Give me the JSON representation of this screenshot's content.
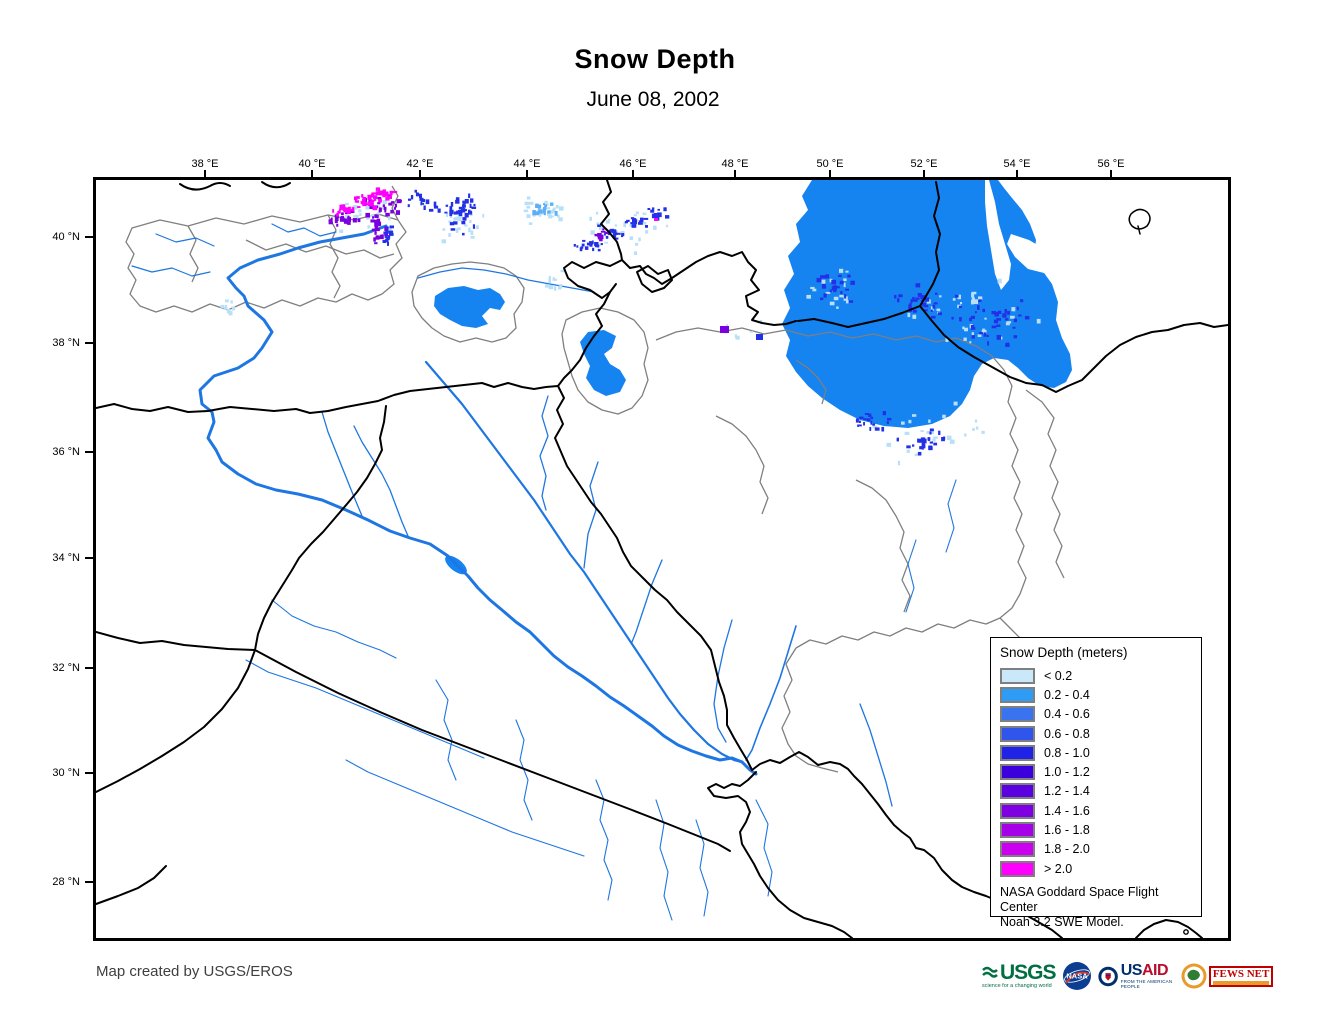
{
  "header": {
    "title": "Snow Depth",
    "subtitle": "June 08, 2002"
  },
  "axes": {
    "top_ticks": [
      "38 °E",
      "40 °E",
      "42 °E",
      "44 °E",
      "46 °E",
      "48 °E",
      "50 °E",
      "52 °E",
      "54 °E",
      "56 °E"
    ],
    "left_ticks": [
      "40 °N",
      "38 °N",
      "36 °N",
      "34 °N",
      "32 °N",
      "30 °N",
      "28 °N"
    ]
  },
  "legend": {
    "title": "Snow Depth (meters)",
    "items": [
      {
        "label": "< 0.2",
        "color": "#C9E8F9"
      },
      {
        "label": "0.2 - 0.4",
        "color": "#2E9BF5"
      },
      {
        "label": "0.4 - 0.6",
        "color": "#3973EF"
      },
      {
        "label": "0.6 - 0.8",
        "color": "#2F55EC"
      },
      {
        "label": "0.8 - 1.0",
        "color": "#2023E6"
      },
      {
        "label": "1.0 - 1.2",
        "color": "#3C00DC"
      },
      {
        "label": "1.2 - 1.4",
        "color": "#5B00DF"
      },
      {
        "label": "1.4 - 1.6",
        "color": "#7E00E2"
      },
      {
        "label": "1.6 - 1.8",
        "color": "#A500E8"
      },
      {
        "label": "1.8 - 2.0",
        "color": "#CA00EE"
      },
      {
        "label": "> 2.0",
        "color": "#FF00FF"
      }
    ],
    "source_line1": "NASA Goddard Space Flight Center",
    "source_line2": "Noah 3.2 SWE Model."
  },
  "footer": {
    "credit": "Map created by USGS/EROS"
  },
  "logos": {
    "usgs": {
      "name": "USGS",
      "tagline": "science for a changing world"
    },
    "nasa": {
      "name": "NASA"
    },
    "usaid": {
      "name": "USAID",
      "tagline": "FROM THE AMERICAN PEOPLE"
    },
    "fewsnet": {
      "name": "FEWS NET"
    }
  },
  "map_colors": {
    "water": "#1583F0",
    "river": "#1D76E2",
    "country_border": "#000000",
    "basin_boundary": "#7F7F7F"
  }
}
